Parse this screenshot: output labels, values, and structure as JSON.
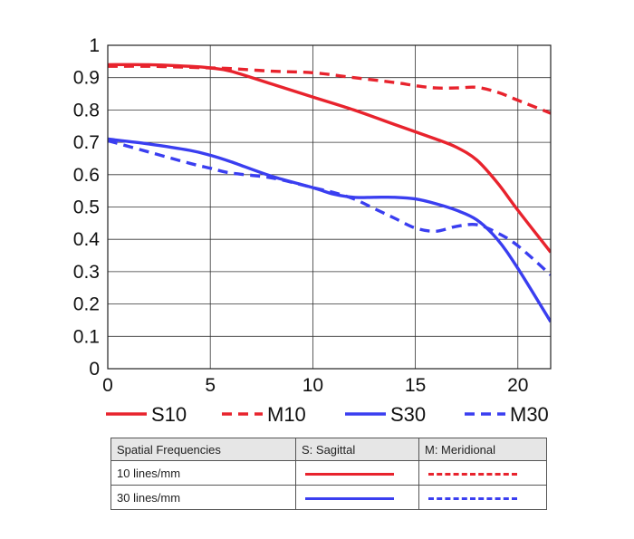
{
  "chart_data": {
    "type": "line",
    "xlim": [
      0,
      21.6
    ],
    "ylim": [
      0,
      1
    ],
    "x_ticks": [
      "0",
      "5",
      "10",
      "15",
      "20"
    ],
    "y_ticks": [
      "0",
      "0.1",
      "0.2",
      "0.3",
      "0.4",
      "0.5",
      "0.6",
      "0.7",
      "0.8",
      "0.9",
      "1"
    ],
    "grid": true,
    "legend_position": "bottom",
    "series": [
      {
        "name": "S10",
        "color": "#e8232d",
        "dash": false,
        "x": [
          0,
          2,
          4,
          5,
          6,
          8,
          10,
          12,
          14,
          16,
          17,
          18,
          19,
          20,
          21.6
        ],
        "y": [
          0.94,
          0.94,
          0.935,
          0.93,
          0.92,
          0.88,
          0.84,
          0.8,
          0.755,
          0.71,
          0.685,
          0.645,
          0.575,
          0.49,
          0.36
        ]
      },
      {
        "name": "M10",
        "color": "#e8232d",
        "dash": true,
        "x": [
          0,
          2,
          4,
          5,
          6,
          8,
          10,
          12,
          14,
          15,
          16,
          17,
          18,
          19,
          20,
          21.6
        ],
        "y": [
          0.935,
          0.935,
          0.932,
          0.93,
          0.928,
          0.92,
          0.915,
          0.9,
          0.885,
          0.875,
          0.868,
          0.868,
          0.87,
          0.855,
          0.83,
          0.79
        ]
      },
      {
        "name": "S30",
        "color": "#3a3ef0",
        "dash": false,
        "x": [
          0,
          2,
          4,
          5,
          6,
          8,
          10,
          11,
          12,
          13,
          14,
          15,
          16,
          17,
          18,
          19,
          20,
          21.6
        ],
        "y": [
          0.71,
          0.695,
          0.675,
          0.66,
          0.64,
          0.595,
          0.56,
          0.54,
          0.53,
          0.53,
          0.53,
          0.525,
          0.51,
          0.49,
          0.46,
          0.4,
          0.31,
          0.145
        ]
      },
      {
        "name": "M30",
        "color": "#3a3ef0",
        "dash": true,
        "x": [
          0,
          2,
          4,
          5,
          6,
          8,
          10,
          11,
          12,
          13,
          14,
          15,
          16,
          17,
          18,
          19,
          20,
          21.6
        ],
        "y": [
          0.705,
          0.67,
          0.635,
          0.62,
          0.605,
          0.59,
          0.56,
          0.545,
          0.525,
          0.495,
          0.465,
          0.435,
          0.425,
          0.44,
          0.445,
          0.42,
          0.38,
          0.29
        ]
      }
    ]
  },
  "table": {
    "headers": [
      "Spatial Frequencies",
      "S: Sagittal",
      "M: Meridional"
    ],
    "rows": [
      {
        "label": "10 lines/mm",
        "sagittal": "solid red line",
        "meridional": "dashed red line"
      },
      {
        "label": "30 lines/mm",
        "sagittal": "solid blue line",
        "meridional": "dashed blue line"
      }
    ]
  }
}
